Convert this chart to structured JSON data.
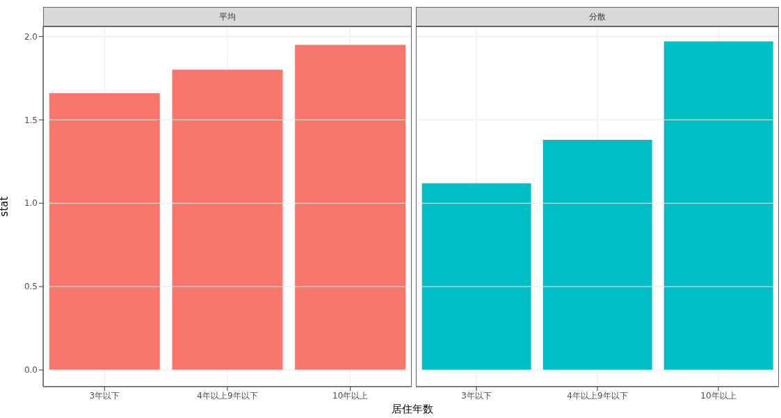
{
  "chart_data": [
    {
      "type": "bar",
      "title": "平均",
      "xlabel": "居住年数",
      "ylabel": "stat",
      "categories": [
        "3年以下",
        "4年以上9年以下",
        "10年以上"
      ],
      "values": [
        1.66,
        1.8,
        1.95
      ],
      "color": "#f8766d",
      "ylim": [
        -0.1,
        2.06
      ],
      "yticks": [
        {
          "value": 0,
          "label": "0.0"
        },
        {
          "value": 0.5,
          "label": "0.5"
        },
        {
          "value": 1,
          "label": "1.0"
        },
        {
          "value": 1.5,
          "label": "1.5"
        },
        {
          "value": 2,
          "label": "2.0"
        }
      ],
      "grid": true
    },
    {
      "type": "bar",
      "title": "分散",
      "categories": [
        "3年以下",
        "4年以上9年以下",
        "10年以上"
      ],
      "values": [
        1.12,
        1.38,
        1.97
      ],
      "color": "#00bfc4",
      "ylim": [
        -0.1,
        2.06
      ],
      "yticks": [
        0,
        0.5,
        1,
        1.5,
        2
      ],
      "grid": true,
      "tick_labels": "x"
    }
  ]
}
